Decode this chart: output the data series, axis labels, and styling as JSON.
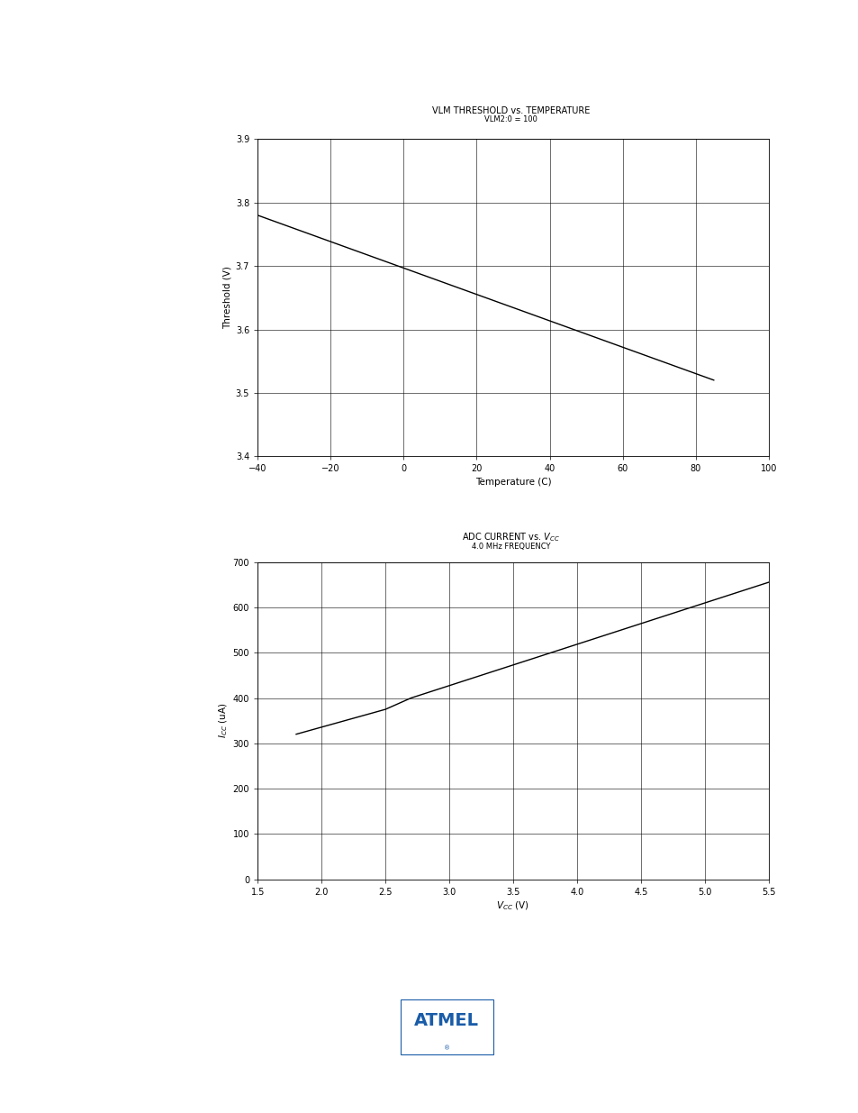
{
  "chart1": {
    "title": "VLM THRESHOLD vs. TEMPERATURE",
    "subtitle": "VLM2:0 = 100",
    "xlabel": "Temperature (C)",
    "ylabel": "Threshold (V)",
    "xlim": [
      -40,
      100
    ],
    "ylim": [
      3.4,
      3.9
    ],
    "xticks": [
      -40,
      -20,
      0,
      20,
      40,
      60,
      80,
      100
    ],
    "yticks": [
      3.4,
      3.5,
      3.6,
      3.7,
      3.8,
      3.9
    ],
    "x_data": [
      -40,
      85
    ],
    "y_data": [
      3.78,
      3.52
    ],
    "line_color": "#000000",
    "line_width": 1.0
  },
  "chart2": {
    "title": "ADC CURRENT vs. V$_{CC}$",
    "subtitle": "4.0 MHz FREQUENCY",
    "xlim": [
      1.5,
      5.5
    ],
    "ylim": [
      0,
      700
    ],
    "xticks": [
      1.5,
      2.0,
      2.5,
      3.0,
      3.5,
      4.0,
      4.5,
      5.0,
      5.5
    ],
    "yticks": [
      0,
      100,
      200,
      300,
      400,
      500,
      600,
      700
    ],
    "x_data": [
      1.8,
      2.5,
      2.7,
      5.55
    ],
    "y_data": [
      320,
      375,
      400,
      660
    ],
    "line_color": "#000000",
    "line_width": 1.0
  },
  "header_color": "#000000",
  "bg_color": "#ffffff",
  "title_fontsize": 7.0,
  "subtitle_fontsize": 6.0,
  "axis_label_fontsize": 7.5,
  "tick_fontsize": 7.0,
  "grid_color": "#000000",
  "grid_lw": 0.4
}
